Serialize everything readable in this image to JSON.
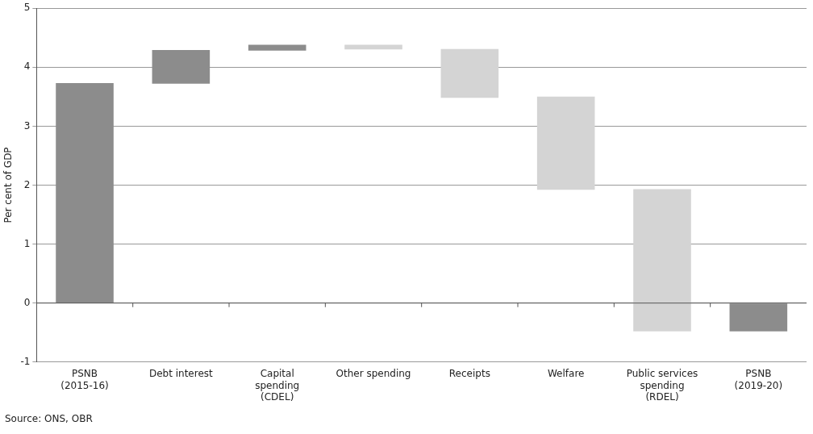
{
  "chart_data": {
    "type": "bar",
    "ylabel": "Per cent of GDP",
    "categories": [
      "PSNB (2015-16)",
      "Debt interest",
      "Capital spending (CDEL)",
      "Other spending",
      "Receipts",
      "Welfare",
      "Public services spending (RDEL)",
      "PSNB (2019-20)"
    ],
    "values": [
      3.73,
      0.57,
      0.1,
      0.08,
      -0.83,
      -1.58,
      -2.41,
      -0.48
    ],
    "base": [
      0,
      3.72,
      4.28,
      4.3,
      4.31,
      3.5,
      1.93,
      0
    ],
    "colors": [
      "#8c8c8c",
      "#8c8c8c",
      "#8c8c8c",
      "#d4d4d4",
      "#d4d4d4",
      "#d4d4d4",
      "#d4d4d4",
      "#8c8c8c"
    ],
    "ylim": [
      -1,
      5
    ],
    "yticks": [
      -1,
      0,
      1,
      2,
      3,
      4,
      5
    ],
    "grid": "y",
    "annotations": [
      "Source: ONS, OBR"
    ]
  }
}
